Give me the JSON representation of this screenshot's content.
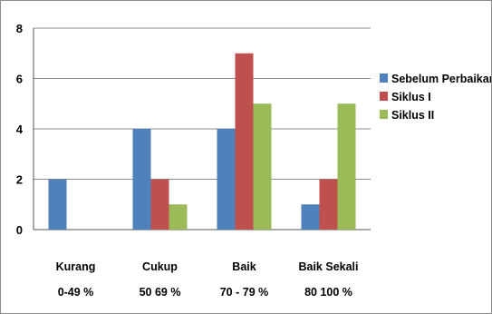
{
  "chart_data": {
    "type": "bar",
    "categories": [
      [
        "Kurang",
        "0-49 %"
      ],
      [
        "Cukup",
        "50 69 %"
      ],
      [
        "Baik",
        "70 - 79 %"
      ],
      [
        "Baik Sekali",
        "80 100 %"
      ]
    ],
    "series": [
      {
        "name": "Sebelum Perbaikan",
        "values": [
          2,
          4,
          4,
          1
        ],
        "color": "#4f81bd"
      },
      {
        "name": "Siklus I",
        "values": [
          0,
          2,
          7,
          2
        ],
        "color": "#c0504d"
      },
      {
        "name": "Siklus II",
        "values": [
          0,
          1,
          5,
          5
        ],
        "color": "#9bbb59"
      }
    ],
    "ylim": [
      0,
      8
    ],
    "yticks": [
      0,
      2,
      4,
      6,
      8
    ],
    "grid": true,
    "legend": "right"
  }
}
